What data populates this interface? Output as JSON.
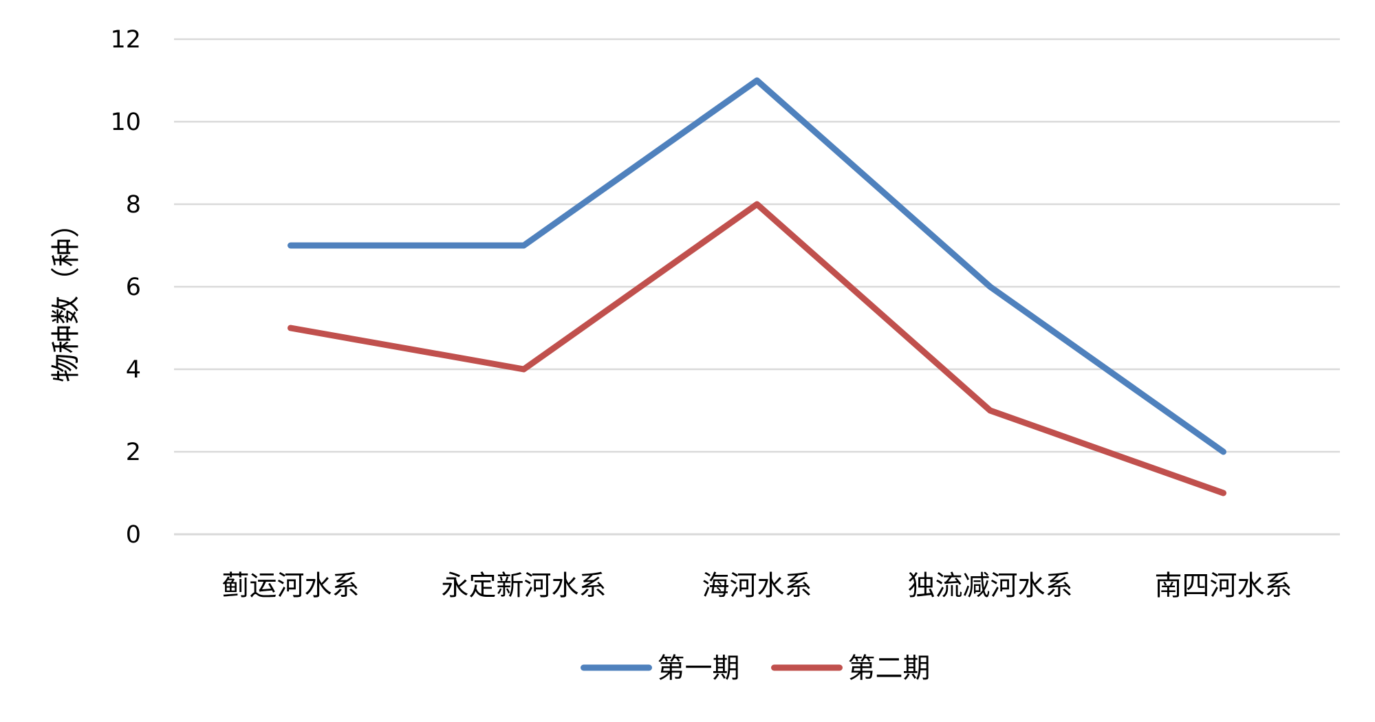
{
  "chart_data": {
    "type": "line",
    "title": "",
    "xlabel": "",
    "ylabel": "物种数（种）",
    "categories": [
      "蓟运河水系",
      "永定新河水系",
      "海河水系",
      "独流减河水系",
      "南四河水系"
    ],
    "series": [
      {
        "name": "第一期",
        "values": [
          7,
          7,
          11,
          6,
          2
        ],
        "color": "#4f81bd"
      },
      {
        "name": "第二期",
        "values": [
          5,
          4,
          8,
          3,
          1
        ],
        "color": "#c0504d"
      }
    ],
    "ylim": [
      0,
      12
    ],
    "yticks": [
      0,
      2,
      4,
      6,
      8,
      10,
      12
    ],
    "grid": true,
    "legend_position": "bottom"
  }
}
